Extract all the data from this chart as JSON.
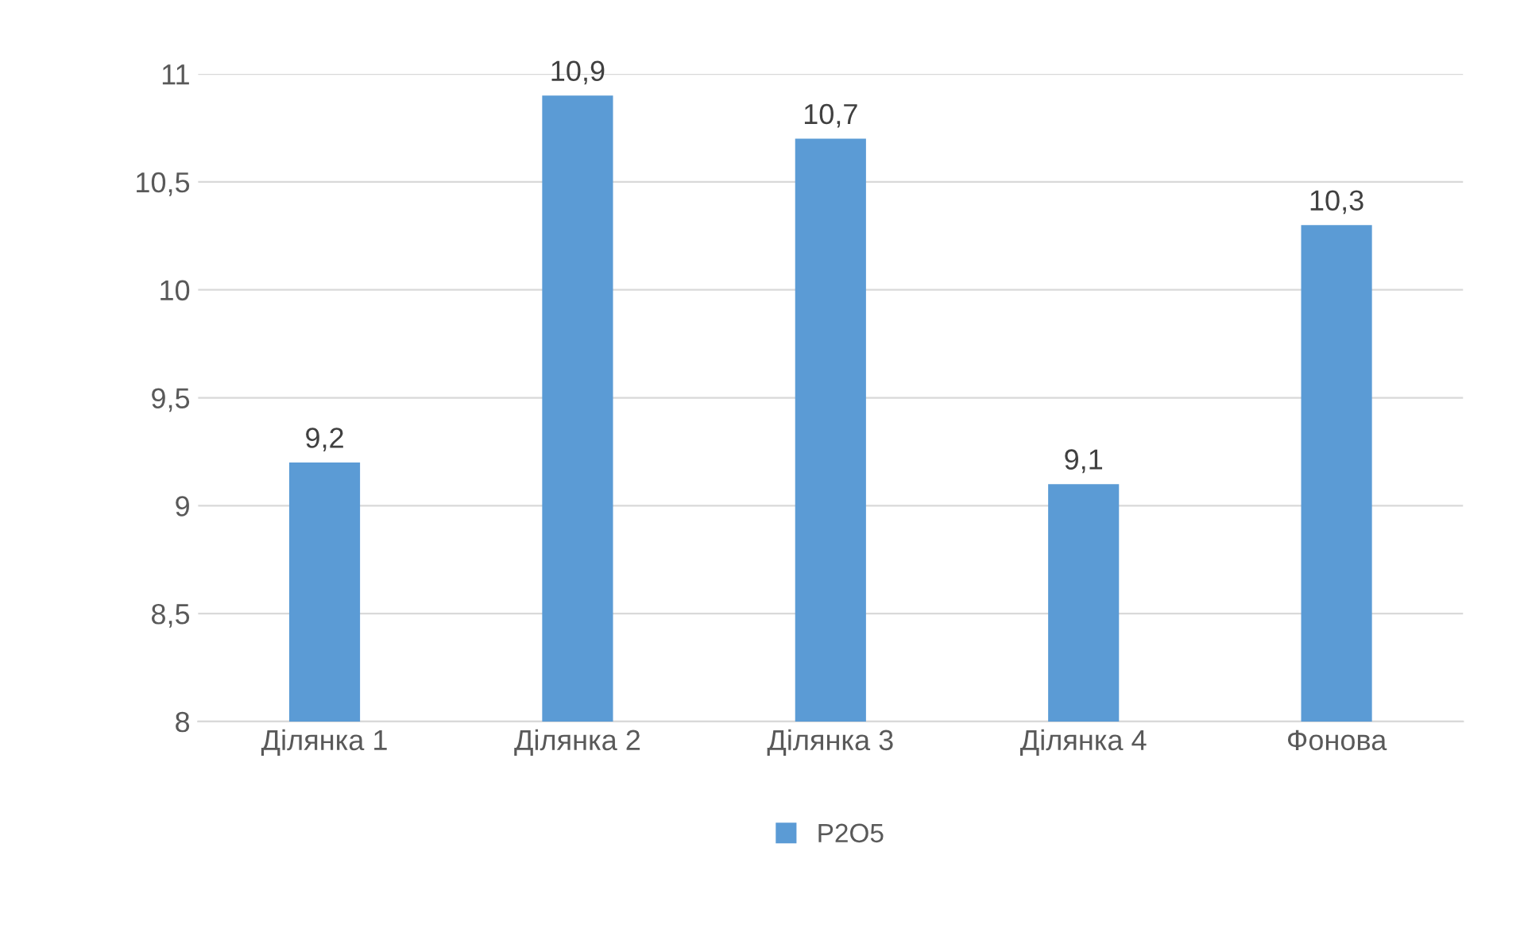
{
  "chart_data": {
    "type": "bar",
    "categories": [
      "Ділянка 1",
      "Ділянка 2",
      "Ділянка 3",
      "Ділянка 4",
      "Фонова"
    ],
    "series": [
      {
        "name": "P2O5",
        "color": "#5b9bd5",
        "values": [
          9.2,
          10.9,
          10.7,
          9.1,
          10.3
        ],
        "value_labels": [
          "9,2",
          "10,9",
          "10,7",
          "9,1",
          "10,3"
        ]
      }
    ],
    "ylim": [
      8,
      11
    ],
    "yticks": [
      8,
      {
        "value": 8.5,
        "label": "8,5"
      },
      9,
      {
        "value": 9.5,
        "label": "9,5"
      },
      10,
      {
        "value": 10.5,
        "label": "10,5"
      },
      11
    ],
    "grid": "y",
    "legend": "bottom"
  }
}
